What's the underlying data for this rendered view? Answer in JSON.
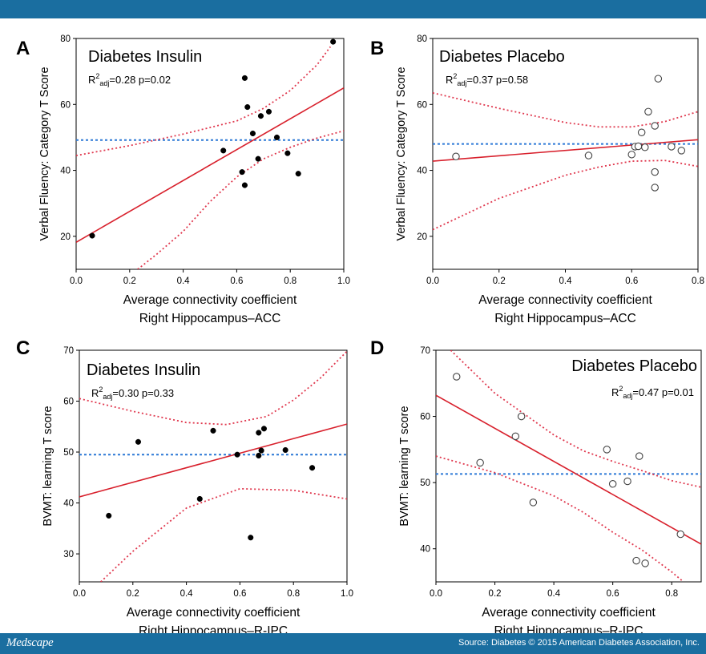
{
  "footer": {
    "brand": "Medscape",
    "source": "Source: Diabetes © 2015 American Diabetes Association, Inc."
  },
  "chart_data": [
    {
      "panel": "A",
      "type": "scatter",
      "title": "Diabetes Insulin",
      "stat_r2": "R",
      "stat_sup": "2",
      "stat_sub": "adj",
      "stat_rest": "=0.28 p=0.02",
      "xlabel": "Average  connectivity  coefficient",
      "xlabel2": "Right  Hippocampus–ACC",
      "ylabel": "Verbal  Fluency:  Category  T  Score",
      "xlim": [
        0,
        1
      ],
      "ylim": [
        10,
        80
      ],
      "xticks": [
        "0.0",
        "0.2",
        "0.4",
        "0.6",
        "0.8",
        "1.0"
      ],
      "yticks": [
        "20",
        "40",
        "60",
        "80"
      ],
      "marker": "filled",
      "points": [
        [
          0.06,
          20.2
        ],
        [
          0.55,
          46
        ],
        [
          0.62,
          39.5
        ],
        [
          0.63,
          68
        ],
        [
          0.63,
          35.5
        ],
        [
          0.64,
          59.2
        ],
        [
          0.66,
          51.2
        ],
        [
          0.68,
          43.5
        ],
        [
          0.69,
          56.5
        ],
        [
          0.72,
          57.8
        ],
        [
          0.75,
          50
        ],
        [
          0.79,
          45.2
        ],
        [
          0.83,
          39
        ],
        [
          0.96,
          79
        ]
      ],
      "fit": [
        18.2,
        65
      ],
      "mean": 49.2,
      "ci_upper": [
        [
          0,
          44.5
        ],
        [
          0.2,
          47.5
        ],
        [
          0.4,
          51
        ],
        [
          0.6,
          55
        ],
        [
          0.7,
          58.8
        ],
        [
          0.8,
          64.2
        ],
        [
          0.9,
          72
        ],
        [
          0.95,
          77.5
        ]
      ],
      "ci_lower": [
        [
          0.23,
          10
        ],
        [
          0.3,
          14.5
        ],
        [
          0.4,
          21.5
        ],
        [
          0.5,
          30.5
        ],
        [
          0.6,
          38
        ],
        [
          0.7,
          43.5
        ],
        [
          0.8,
          47
        ],
        [
          0.9,
          49.8
        ],
        [
          1.0,
          52
        ]
      ]
    },
    {
      "panel": "B",
      "type": "scatter",
      "title": "Diabetes Placebo",
      "stat_r2": "R",
      "stat_sup": "2",
      "stat_sub": "adj",
      "stat_rest": "=0.37 p=0.58",
      "xlabel": "Average  connectivity  coefficient",
      "xlabel2": "Right  Hippocampus–ACC",
      "ylabel": "Verbal  Fluency:  Category  T  Score",
      "xlim": [
        0,
        0.8
      ],
      "ylim": [
        10,
        80
      ],
      "xticks": [
        "0.0",
        "0.2",
        "0.4",
        "0.6",
        "0.8"
      ],
      "yticks": [
        "20",
        "40",
        "60",
        "80"
      ],
      "marker": "open",
      "points": [
        [
          0.07,
          44.2
        ],
        [
          0.47,
          44.5
        ],
        [
          0.6,
          44.8
        ],
        [
          0.61,
          47.2
        ],
        [
          0.62,
          47.3
        ],
        [
          0.63,
          51.5
        ],
        [
          0.64,
          47
        ],
        [
          0.65,
          57.8
        ],
        [
          0.67,
          53.5
        ],
        [
          0.67,
          39.5
        ],
        [
          0.67,
          34.8
        ],
        [
          0.68,
          67.8
        ],
        [
          0.72,
          47.2
        ],
        [
          0.75,
          46
        ]
      ],
      "fit": [
        42.8,
        49.3
      ],
      "mean": 48,
      "ci_upper": [
        [
          0,
          63.5
        ],
        [
          0.2,
          58.8
        ],
        [
          0.4,
          54.5
        ],
        [
          0.5,
          53.2
        ],
        [
          0.6,
          53.2
        ],
        [
          0.7,
          54.8
        ],
        [
          0.8,
          57.8
        ]
      ],
      "ci_lower": [
        [
          0,
          22
        ],
        [
          0.2,
          31.5
        ],
        [
          0.4,
          38.5
        ],
        [
          0.5,
          41
        ],
        [
          0.6,
          42.8
        ],
        [
          0.7,
          43
        ],
        [
          0.8,
          41.2
        ]
      ]
    },
    {
      "panel": "C",
      "type": "scatter",
      "title": "Diabetes Insulin",
      "stat_r2": "R",
      "stat_sup": "2",
      "stat_sub": "adj",
      "stat_rest": "=0.30 p=0.33",
      "xlabel": "Average  connectivity  coefficient",
      "xlabel2": "Right  Hippocampus–R-IPC",
      "ylabel": "BVMT:  learning  T  score",
      "xlim": [
        0,
        1
      ],
      "ylim": [
        24.5,
        70
      ],
      "xticks": [
        "0.0",
        "0.2",
        "0.4",
        "0.6",
        "0.8",
        "1.0"
      ],
      "yticks": [
        "30",
        "40",
        "50",
        "60",
        "70"
      ],
      "marker": "filled",
      "points": [
        [
          0.11,
          37.5
        ],
        [
          0.22,
          52
        ],
        [
          0.45,
          40.8
        ],
        [
          0.5,
          54.2
        ],
        [
          0.59,
          49.5
        ],
        [
          0.64,
          33.2
        ],
        [
          0.67,
          53.8
        ],
        [
          0.67,
          49.3
        ],
        [
          0.68,
          50.3
        ],
        [
          0.69,
          54.6
        ],
        [
          0.77,
          50.4
        ],
        [
          0.87,
          46.9
        ]
      ],
      "fit": [
        41.2,
        55.5
      ],
      "mean": 49.5,
      "ci_upper": [
        [
          0,
          60.5
        ],
        [
          0.2,
          58
        ],
        [
          0.4,
          55.8
        ],
        [
          0.55,
          55.4
        ],
        [
          0.7,
          57
        ],
        [
          0.8,
          60.2
        ],
        [
          0.9,
          64.5
        ],
        [
          1.0,
          69.8
        ]
      ],
      "ci_lower": [
        [
          0.08,
          24.5
        ],
        [
          0.2,
          30.5
        ],
        [
          0.4,
          39
        ],
        [
          0.6,
          42.8
        ],
        [
          0.8,
          42.5
        ],
        [
          1.0,
          40.8
        ]
      ]
    },
    {
      "panel": "D",
      "type": "scatter",
      "title": "Diabetes Placebo",
      "stat_r2": "R",
      "stat_sup": "2",
      "stat_sub": "adj",
      "stat_rest": "=0.47 p=0.01",
      "xlabel": "Average  connectivity  coefficient",
      "xlabel2": "Right  Hippocampus–R-IPC",
      "ylabel": "BVMT:  learning  T  score",
      "xlim": [
        0,
        0.9
      ],
      "ylim": [
        35,
        70
      ],
      "xticks": [
        "0.0",
        "0.2",
        "0.4",
        "0.6",
        "0.8"
      ],
      "yticks": [
        "40",
        "50",
        "60",
        "70"
      ],
      "marker": "open",
      "points": [
        [
          0.07,
          66
        ],
        [
          0.15,
          53
        ],
        [
          0.27,
          57
        ],
        [
          0.29,
          60
        ],
        [
          0.33,
          47
        ],
        [
          0.58,
          55
        ],
        [
          0.6,
          49.8
        ],
        [
          0.65,
          50.2
        ],
        [
          0.68,
          38.2
        ],
        [
          0.69,
          54
        ],
        [
          0.71,
          37.8
        ],
        [
          0.83,
          42.2
        ]
      ],
      "fit": [
        63.2,
        40.7
      ],
      "mean": 51.3,
      "ci_upper": [
        [
          0.05,
          70
        ],
        [
          0.2,
          63.5
        ],
        [
          0.4,
          57.2
        ],
        [
          0.5,
          54.8
        ],
        [
          0.6,
          53.2
        ],
        [
          0.7,
          51.8
        ],
        [
          0.8,
          50.3
        ],
        [
          0.9,
          49.3
        ]
      ],
      "ci_lower": [
        [
          0,
          54
        ],
        [
          0.2,
          51.5
        ],
        [
          0.4,
          48
        ],
        [
          0.5,
          45.5
        ],
        [
          0.6,
          42.5
        ],
        [
          0.7,
          39.8
        ],
        [
          0.8,
          36.5
        ],
        [
          0.84,
          35
        ]
      ]
    }
  ]
}
